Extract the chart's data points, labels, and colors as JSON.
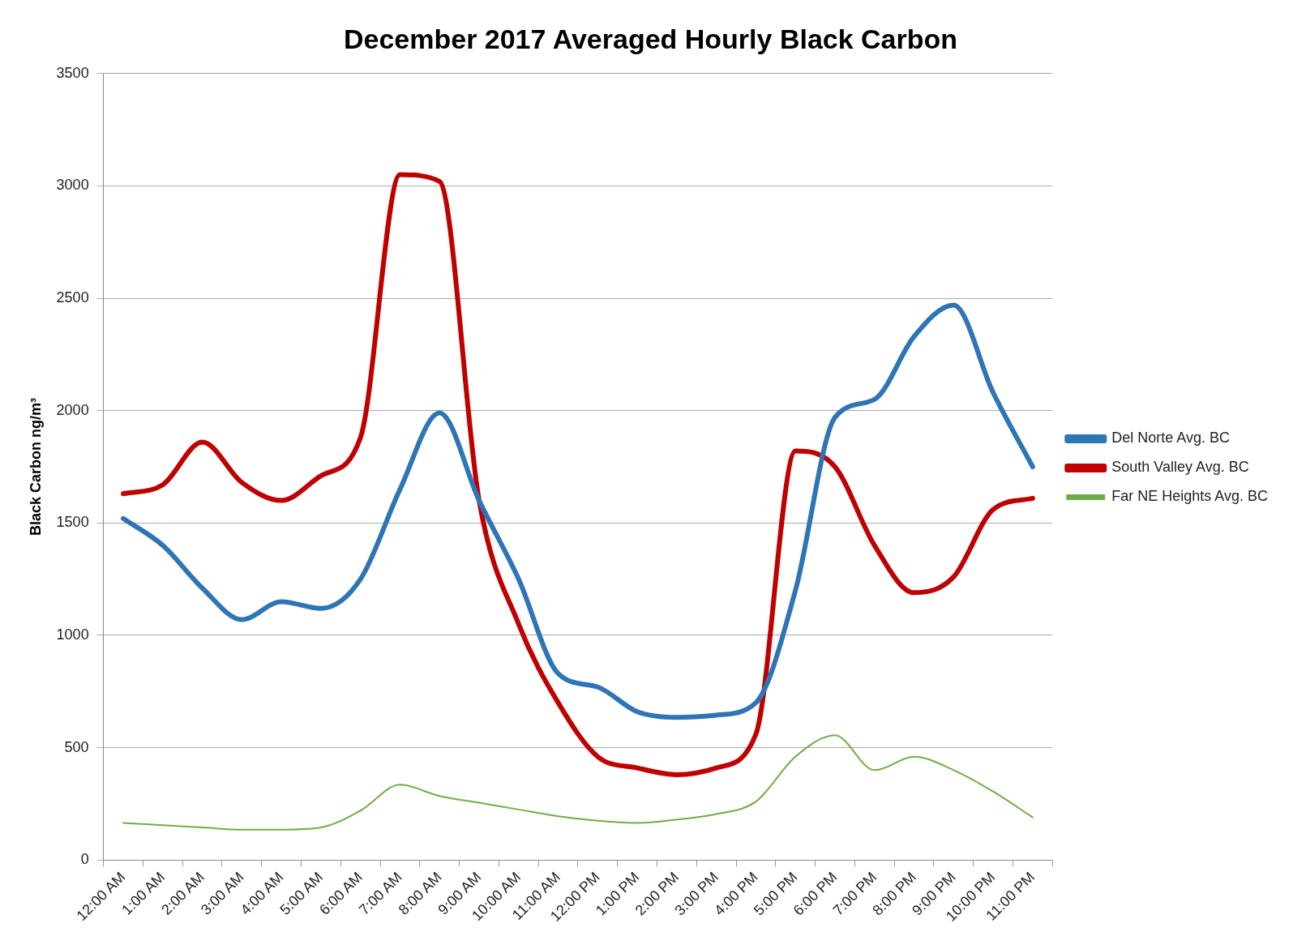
{
  "chart_data": {
    "type": "line",
    "title": "December 2017 Averaged Hourly Black Carbon",
    "ylabel": "Black Carbon ng/m³",
    "categories": [
      "12:00 AM",
      "1:00 AM",
      "2:00 AM",
      "3:00 AM",
      "4:00 AM",
      "5:00 AM",
      "6:00 AM",
      "7:00 AM",
      "8:00 AM",
      "9:00 AM",
      "10:00 AM",
      "11:00 AM",
      "12:00 PM",
      "1:00 PM",
      "2:00 PM",
      "3:00 PM",
      "4:00 PM",
      "5:00 PM",
      "6:00 PM",
      "7:00 PM",
      "8:00 PM",
      "9:00 PM",
      "10:00 PM",
      "11:00 PM"
    ],
    "series": [
      {
        "name": "Del Norte Avg. BC",
        "color": "#2e75b6",
        "values": [
          1520,
          1400,
          1210,
          1070,
          1150,
          1120,
          1250,
          1650,
          1990,
          1600,
          1250,
          830,
          770,
          660,
          635,
          645,
          700,
          1200,
          1970,
          2050,
          2330,
          2470,
          2080,
          1750
        ]
      },
      {
        "name": "South Valley Avg. BC",
        "color": "#c00000",
        "values": [
          1630,
          1670,
          1860,
          1680,
          1600,
          1710,
          1880,
          3050,
          3020,
          1600,
          1050,
          700,
          460,
          410,
          380,
          410,
          560,
          1820,
          1750,
          1400,
          1190,
          1260,
          1560,
          1610
        ]
      },
      {
        "name": "Far NE Heights Avg. BC",
        "color": "#70ad47",
        "values": [
          165,
          155,
          145,
          135,
          135,
          145,
          220,
          335,
          285,
          255,
          225,
          195,
          175,
          165,
          180,
          205,
          260,
          460,
          555,
          400,
          460,
          400,
          305,
          190
        ]
      }
    ],
    "ylim": [
      0,
      3500
    ],
    "yticks": [
      0,
      500,
      1000,
      1500,
      2000,
      2500,
      3000,
      3500
    ],
    "grid": "y",
    "legend": "right",
    "marker": "none",
    "line_style": "solid"
  }
}
